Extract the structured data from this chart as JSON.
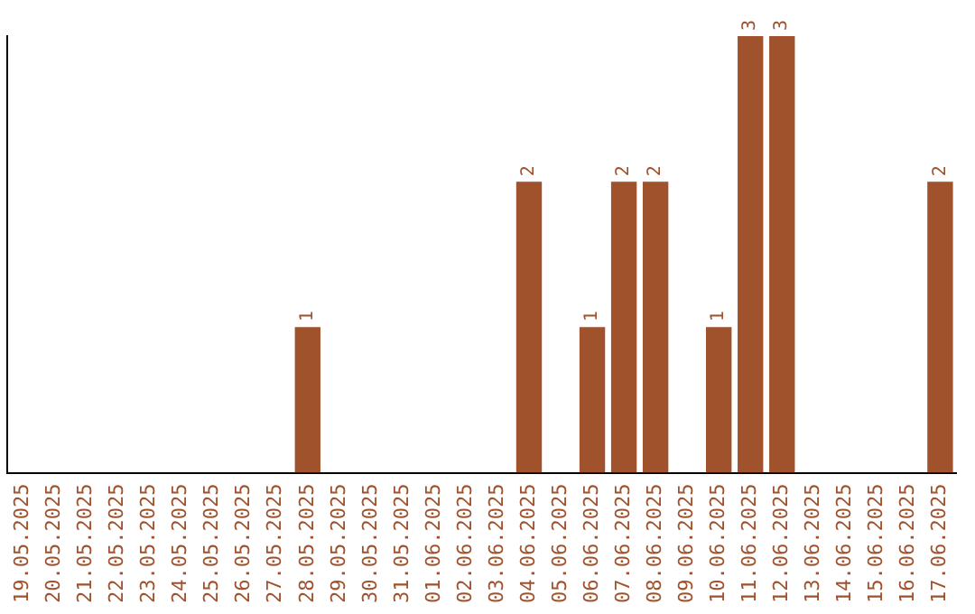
{
  "chart_data": {
    "type": "bar",
    "categories": [
      "19.05.2025",
      "20.05.2025",
      "21.05.2025",
      "22.05.2025",
      "23.05.2025",
      "24.05.2025",
      "25.05.2025",
      "26.05.2025",
      "27.05.2025",
      "28.05.2025",
      "29.05.2025",
      "30.05.2025",
      "31.05.2025",
      "01.06.2025",
      "02.06.2025",
      "03.06.2025",
      "04.06.2025",
      "05.06.2025",
      "06.06.2025",
      "07.06.2025",
      "08.06.2025",
      "09.06.2025",
      "10.06.2025",
      "11.06.2025",
      "12.06.2025",
      "13.06.2025",
      "14.06.2025",
      "15.06.2025",
      "16.06.2025",
      "17.06.2025"
    ],
    "values": [
      0,
      0,
      0,
      0,
      0,
      0,
      0,
      0,
      0,
      1,
      0,
      0,
      0,
      0,
      0,
      0,
      2,
      0,
      1,
      2,
      2,
      0,
      1,
      3,
      3,
      0,
      0,
      0,
      0,
      2
    ],
    "value_labels": [
      null,
      null,
      null,
      null,
      null,
      null,
      null,
      null,
      null,
      "1",
      null,
      null,
      null,
      null,
      null,
      null,
      "2",
      null,
      "1",
      "2",
      "2",
      null,
      "1",
      "3",
      "3",
      null,
      null,
      null,
      null,
      "2"
    ],
    "color": "#a0522d",
    "ylim": [
      0,
      3
    ],
    "tick_labels": "x",
    "grid": false,
    "legend": false
  }
}
